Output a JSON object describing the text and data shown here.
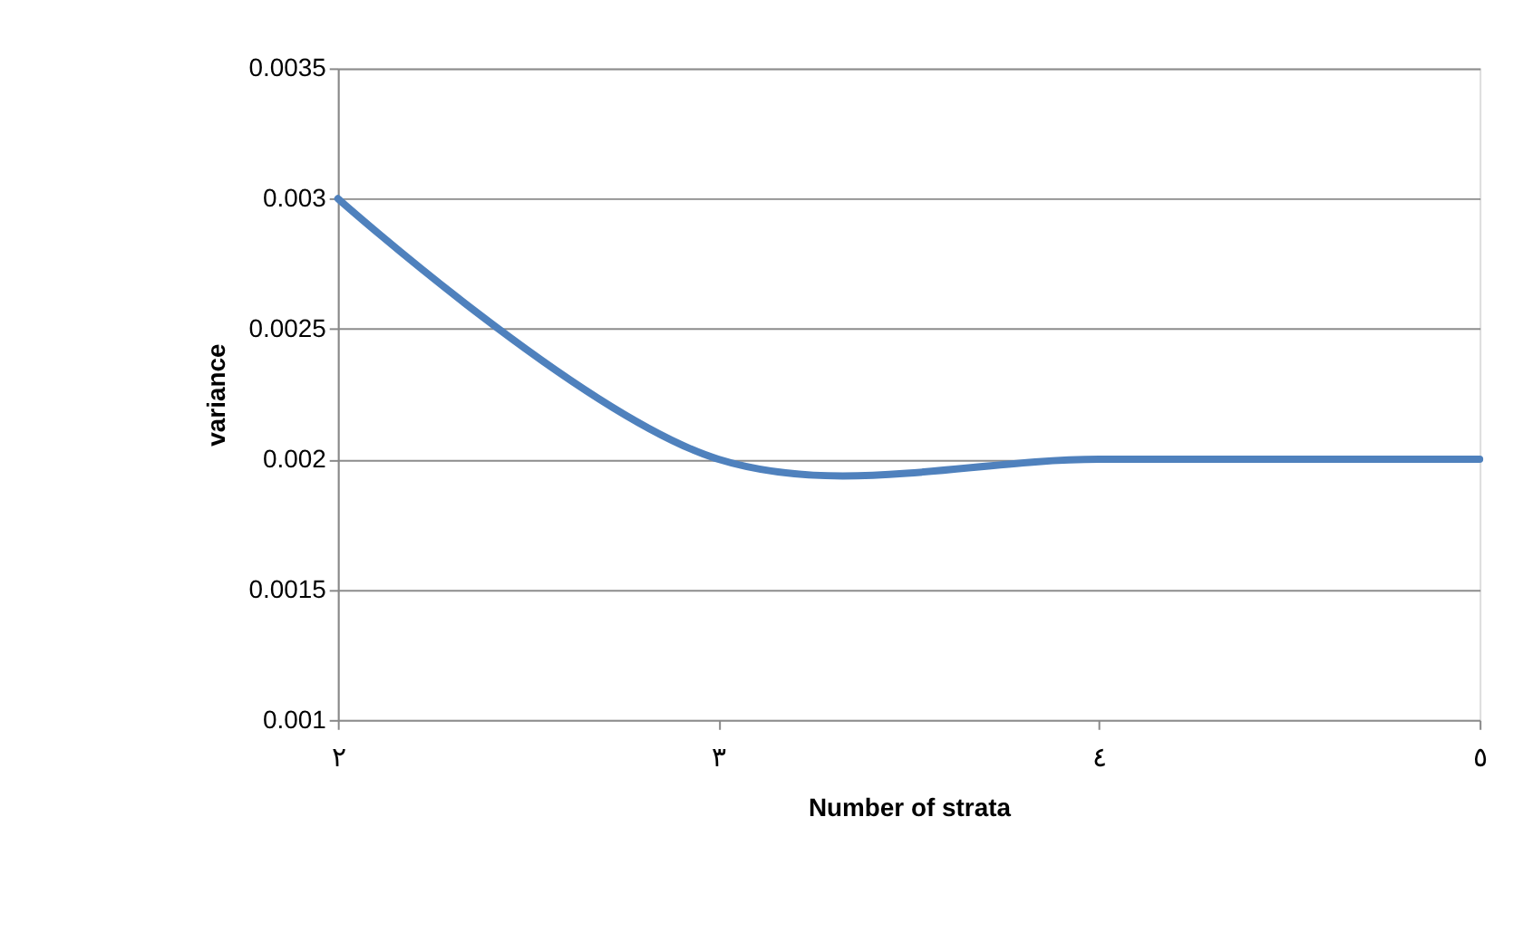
{
  "chart_data": {
    "type": "line",
    "xlabel": "Number of strata",
    "ylabel": "variance",
    "categories": [
      "٢",
      "٣",
      "٤",
      "٥"
    ],
    "series": [
      {
        "color": "#4f81bd",
        "values": [
          0.003,
          0.002,
          0.002,
          0.002
        ]
      }
    ],
    "ylim": [
      0.001,
      0.0035
    ],
    "yticks": [
      0.001,
      0.0015,
      0.002,
      0.0025,
      0.003,
      0.0035
    ],
    "grid": "y",
    "marker": "none",
    "line_style": "solid"
  }
}
